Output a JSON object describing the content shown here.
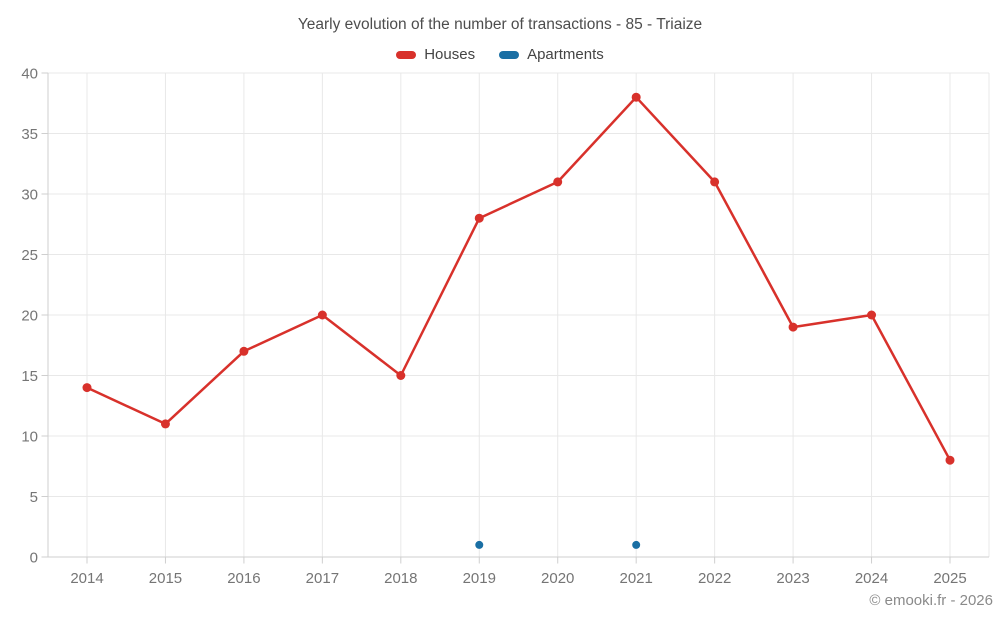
{
  "title": "Yearly evolution of the number of transactions - 85 - Triaize",
  "legend": {
    "items": [
      {
        "label": "Houses",
        "color": "#d8312b"
      },
      {
        "label": "Apartments",
        "color": "#1a6fa4"
      }
    ]
  },
  "watermark": "© emooki.fr - 2026",
  "chart_data": {
    "type": "line",
    "title": "Yearly evolution of the number of transactions - 85 - Triaize",
    "x": [
      2014,
      2015,
      2016,
      2017,
      2018,
      2019,
      2020,
      2021,
      2022,
      2023,
      2024,
      2025
    ],
    "series": [
      {
        "name": "Houses",
        "color": "#d8312b",
        "values": [
          14,
          11,
          17,
          20,
          15,
          28,
          31,
          38,
          31,
          19,
          20,
          8
        ]
      },
      {
        "name": "Apartments",
        "color": "#1a6fa4",
        "values": [
          null,
          null,
          null,
          null,
          null,
          1,
          null,
          1,
          null,
          null,
          null,
          null
        ]
      }
    ],
    "ylim": [
      0,
      40
    ],
    "ytick_step": 5,
    "xlabel": "",
    "ylabel": "",
    "grid": true,
    "legend_position": "top"
  },
  "colors": {
    "background": "#ffffff",
    "grid": "#e8e8e8",
    "axis": "#cfcfcf",
    "tick_label": "#757575",
    "title": "#4d4d4d",
    "watermark": "#8a8a8a"
  }
}
